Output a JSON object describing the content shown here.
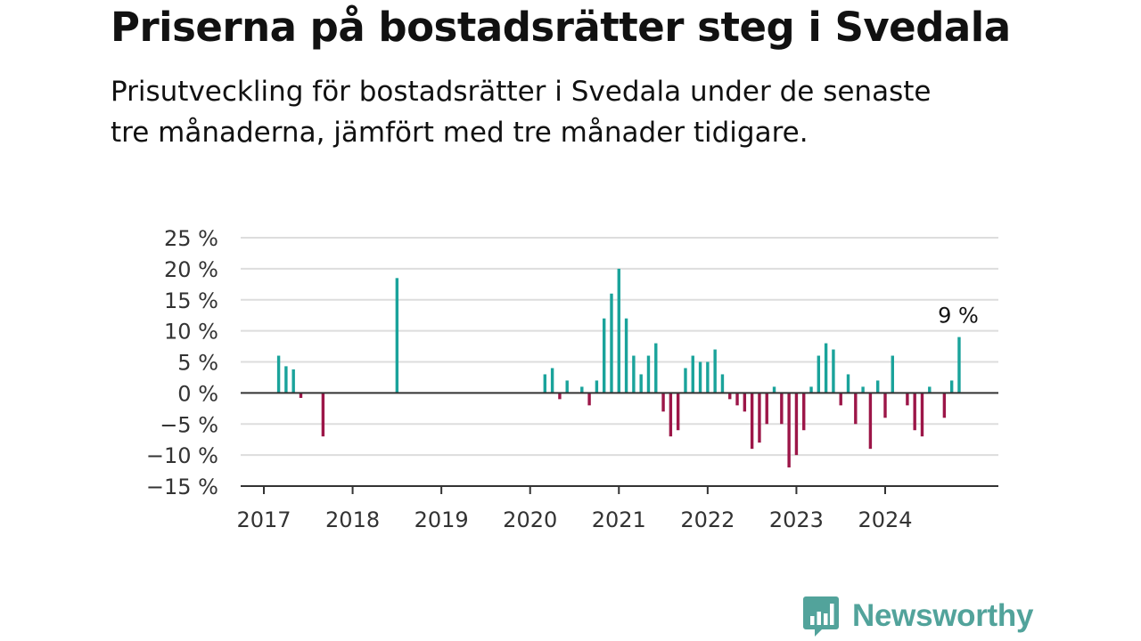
{
  "title": "Priserna på bostadsrätter steg i Svedala",
  "subtitle": "Prisutveckling för bostadsrätter i Svedala under de senaste tre månaderna, jämfört med tre månader tidigare.",
  "brand": {
    "name": "Newsworthy",
    "icon": "newsworthy-logo-icon"
  },
  "colors": {
    "positive": "#1aa39b",
    "negative": "#9c1648",
    "grid": "#dddddd",
    "zero_line": "#333333",
    "brand": "#52a39b"
  },
  "chart_data": {
    "type": "bar",
    "title": "Priserna på bostadsrätter steg i Svedala",
    "xlabel": "",
    "ylabel": "",
    "ylim": [
      -15,
      25
    ],
    "y_ticks": [
      25,
      20,
      15,
      10,
      5,
      0,
      -5,
      -10,
      -15
    ],
    "y_tick_labels": [
      "25 %",
      "20 %",
      "15 %",
      "10 %",
      "5 %",
      "0 %",
      "−5 %",
      "−10 %",
      "−15 %"
    ],
    "x_ticks": [
      2017,
      2018,
      2019,
      2020,
      2021,
      2022,
      2023,
      2024
    ],
    "x_tick_labels": [
      "2017",
      "2018",
      "2019",
      "2020",
      "2021",
      "2022",
      "2023",
      "2024"
    ],
    "grid": true,
    "annotation": {
      "text": "9 %",
      "x": "2024-11",
      "value": 9
    },
    "series": [
      {
        "x": [
          "2017-03",
          "2017-04",
          "2017-05",
          "2017-06",
          "2017-09",
          "2018-07",
          "2020-03",
          "2020-04",
          "2020-05",
          "2020-06",
          "2020-08",
          "2020-09",
          "2020-10",
          "2020-11",
          "2020-12",
          "2021-01",
          "2021-02",
          "2021-03",
          "2021-04",
          "2021-05",
          "2021-06",
          "2021-07",
          "2021-08",
          "2021-09",
          "2021-10",
          "2021-11",
          "2021-12",
          "2022-01",
          "2022-02",
          "2022-03",
          "2022-04",
          "2022-05",
          "2022-06",
          "2022-07",
          "2022-08",
          "2022-09",
          "2022-10",
          "2022-11",
          "2022-12",
          "2023-01",
          "2023-02",
          "2023-03",
          "2023-04",
          "2023-05",
          "2023-06",
          "2023-07",
          "2023-08",
          "2023-09",
          "2023-10",
          "2023-11",
          "2023-12",
          "2024-01",
          "2024-02",
          "2024-04",
          "2024-05",
          "2024-06",
          "2024-07",
          "2024-09",
          "2024-10",
          "2024-11"
        ],
        "values": [
          6,
          4.3,
          3.8,
          -0.8,
          -7,
          18.5,
          3,
          4,
          -1,
          2,
          1,
          -2,
          2,
          12,
          16,
          20,
          12,
          6,
          3,
          6,
          8,
          -3,
          -7,
          -6,
          4,
          6,
          5,
          5,
          7,
          3,
          -1,
          -2,
          -3,
          -9,
          -8,
          -5,
          1,
          -5,
          -12,
          -10,
          -6,
          1,
          6,
          8,
          7,
          -2,
          3,
          -5,
          1,
          -9,
          2,
          -4,
          6,
          -2,
          -6,
          -7,
          1,
          -4,
          2,
          9
        ]
      }
    ]
  }
}
